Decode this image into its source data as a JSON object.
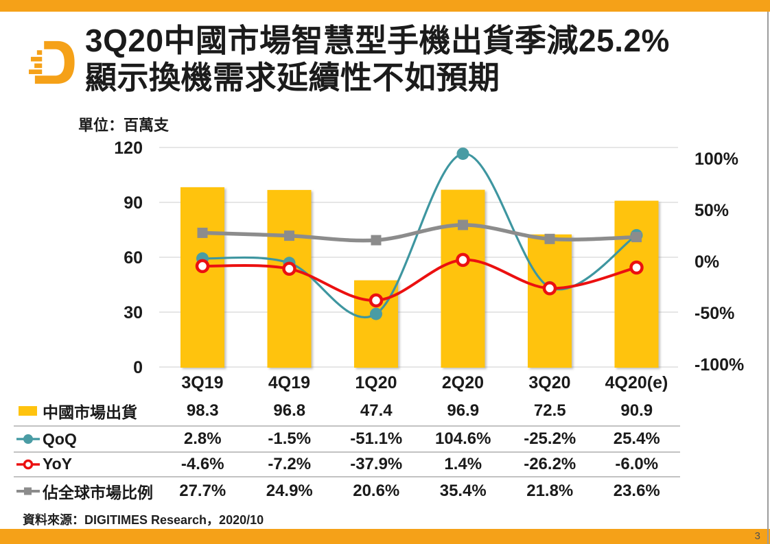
{
  "page": {
    "number": "3"
  },
  "header": {
    "logo": "digitimes-logo",
    "title_line1": "3Q20中國市場智慧型手機出貨季減25.2%",
    "title_line2": "顯示換機需求延續性不如預期"
  },
  "chart": {
    "unit_label": "單位：百萬支"
  },
  "chart_data": {
    "type": "combo-bar-line",
    "categories": [
      "3Q19",
      "4Q19",
      "1Q20",
      "2Q20",
      "3Q20",
      "4Q20(e)"
    ],
    "bar_series": {
      "name": "中國市場出貨",
      "axis": "left",
      "unit": "百萬支",
      "values": [
        98.3,
        96.8,
        47.4,
        96.9,
        72.5,
        90.9
      ]
    },
    "line_series": [
      {
        "name": "QoQ",
        "axis": "right",
        "marker": "circle-filled",
        "values_pct": [
          2.8,
          -1.5,
          -51.1,
          104.6,
          -25.2,
          25.4
        ]
      },
      {
        "name": "YoY",
        "axis": "right",
        "marker": "circle-open",
        "values_pct": [
          -4.6,
          -7.2,
          -37.9,
          1.4,
          -26.2,
          -6.0
        ]
      },
      {
        "name": "佔全球市場比例",
        "axis": "right",
        "marker": "square",
        "values_pct": [
          27.7,
          24.9,
          20.6,
          35.4,
          21.8,
          23.6
        ]
      }
    ],
    "left_axis": {
      "ticks": [
        "120",
        "90",
        "60",
        "30",
        "0"
      ],
      "tick_values": [
        120,
        90,
        60,
        30,
        0
      ],
      "min": 0,
      "max": 120
    },
    "right_axis": {
      "ticks": [
        "100%",
        "50%",
        "0%",
        "-50%",
        "-100%"
      ],
      "tick_values": [
        100,
        50,
        0,
        -50,
        -100
      ]
    },
    "grid": true,
    "legend_position": "table-below"
  },
  "table": {
    "rows": [
      {
        "label": "中國市場出貨",
        "marker": "bar-swatch",
        "values": [
          "98.3",
          "96.8",
          "47.4",
          "96.9",
          "72.5",
          "90.9"
        ]
      },
      {
        "label": "QoQ",
        "marker": "line-dot-teal",
        "values": [
          "2.8%",
          "-1.5%",
          "-51.1%",
          "104.6%",
          "-25.2%",
          "25.4%"
        ]
      },
      {
        "label": "YoY",
        "marker": "line-circle-red",
        "values": [
          "-4.6%",
          "-7.2%",
          "-37.9%",
          "1.4%",
          "-26.2%",
          "-6.0%"
        ]
      },
      {
        "label": "佔全球市場比例",
        "marker": "line-square-gray",
        "values": [
          "27.7%",
          "24.9%",
          "20.6%",
          "35.4%",
          "21.8%",
          "23.6%"
        ]
      }
    ]
  },
  "footer": {
    "source": "資料來源：DIGITIMES Research，2020/10"
  },
  "colors": {
    "accent_orange": "#F5A118",
    "bar_yellow": "#FFC30E",
    "qoq_teal": "#3E96A0",
    "qoq_marker": "#4A9CA4",
    "yoy_red": "#EB1010",
    "share_gray": "#8C8C8C",
    "grid_gray": "#D8D8D8",
    "text_dark": "#1a1a1a"
  }
}
